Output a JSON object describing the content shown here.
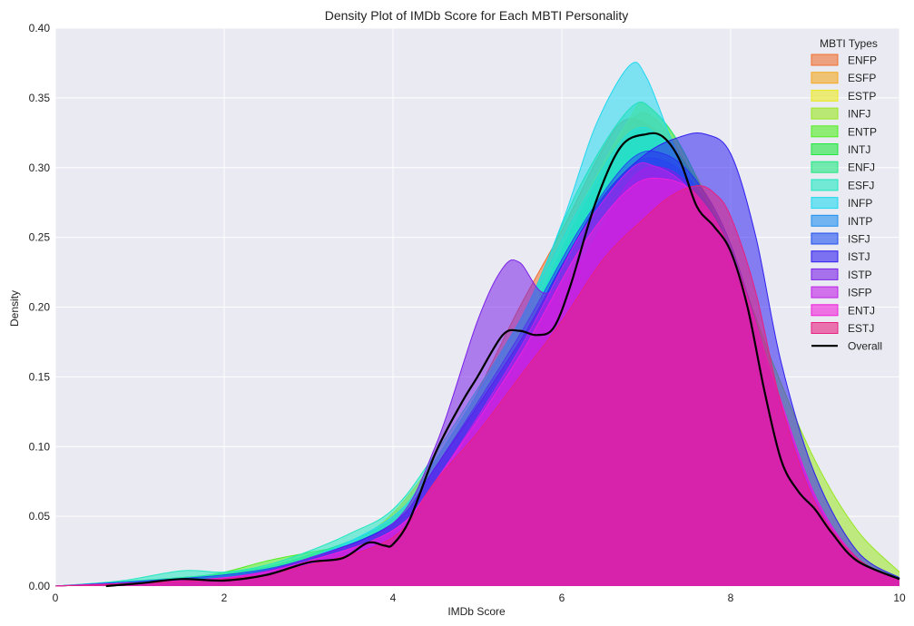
{
  "chart_data": {
    "type": "area",
    "title": "Density Plot of IMDb Score for Each MBTI Personality",
    "xlabel": "IMDb Score",
    "ylabel": "Density",
    "xlim": [
      0,
      10
    ],
    "ylim": [
      0,
      0.4
    ],
    "xticks": [
      "0",
      "2",
      "4",
      "6",
      "8",
      "10"
    ],
    "yticks": [
      "0.00",
      "0.05",
      "0.10",
      "0.15",
      "0.20",
      "0.25",
      "0.30",
      "0.35",
      "0.40"
    ],
    "grid": true,
    "legend": {
      "title": "MBTI Types",
      "position": "top-right"
    },
    "series": [
      {
        "name": "ENFP",
        "color": "#f07030",
        "x": [
          0,
          2,
          3.5,
          4.5,
          5.5,
          6.0,
          6.5,
          6.8,
          7.2,
          7.6,
          8.0,
          8.5,
          9.0,
          9.5,
          10
        ],
        "y": [
          0.0,
          0.006,
          0.028,
          0.085,
          0.2,
          0.255,
          0.315,
          0.335,
          0.322,
          0.29,
          0.24,
          0.13,
          0.05,
          0.015,
          0.005
        ]
      },
      {
        "name": "ESFP",
        "color": "#f4a820",
        "x": [
          0,
          2,
          3.5,
          4.5,
          5.5,
          6.2,
          6.8,
          7.1,
          7.5,
          8.0,
          8.5,
          9.0,
          9.5,
          10
        ],
        "y": [
          0.0,
          0.006,
          0.028,
          0.09,
          0.19,
          0.27,
          0.332,
          0.335,
          0.3,
          0.23,
          0.12,
          0.05,
          0.015,
          0.004
        ]
      },
      {
        "name": "ESTP",
        "color": "#eaea20",
        "x": [
          0,
          2,
          3.5,
          4.5,
          5.5,
          6.2,
          6.8,
          7.0,
          7.4,
          8.0,
          8.5,
          9.0,
          9.5,
          10
        ],
        "y": [
          0.0,
          0.007,
          0.03,
          0.088,
          0.185,
          0.27,
          0.335,
          0.345,
          0.315,
          0.24,
          0.13,
          0.06,
          0.018,
          0.005
        ]
      },
      {
        "name": "INFJ",
        "color": "#98e820",
        "x": [
          0,
          2,
          3.5,
          4.5,
          5.5,
          6.2,
          6.8,
          7.2,
          7.6,
          8.0,
          8.5,
          9.0,
          9.5,
          10
        ],
        "y": [
          0.0,
          0.006,
          0.026,
          0.07,
          0.16,
          0.24,
          0.29,
          0.298,
          0.285,
          0.24,
          0.16,
          0.09,
          0.04,
          0.01
        ]
      },
      {
        "name": "ENTP",
        "color": "#50ee20",
        "x": [
          0,
          1.5,
          2.0,
          2.5,
          3.0,
          3.5,
          4.0,
          4.5,
          5.5,
          6.2,
          6.8,
          7.3,
          7.8,
          8.3,
          9.0,
          9.5,
          10
        ],
        "y": [
          0.0,
          0.006,
          0.01,
          0.018,
          0.024,
          0.03,
          0.042,
          0.08,
          0.18,
          0.26,
          0.31,
          0.305,
          0.26,
          0.16,
          0.06,
          0.02,
          0.006
        ]
      },
      {
        "name": "INTJ",
        "color": "#20e840",
        "x": [
          0,
          2,
          3.0,
          4.0,
          4.5,
          5.5,
          6.2,
          6.8,
          7.2,
          7.6,
          8.0,
          8.5,
          9.0,
          9.5,
          10
        ],
        "y": [
          0.0,
          0.008,
          0.02,
          0.045,
          0.085,
          0.18,
          0.265,
          0.322,
          0.32,
          0.29,
          0.24,
          0.14,
          0.06,
          0.02,
          0.005
        ]
      },
      {
        "name": "ENFJ",
        "color": "#20e880",
        "x": [
          0,
          2,
          3.0,
          4.0,
          4.5,
          5.5,
          6.2,
          6.8,
          7.1,
          7.5,
          8.0,
          8.5,
          9.0,
          9.5,
          10
        ],
        "y": [
          0.0,
          0.009,
          0.022,
          0.048,
          0.09,
          0.19,
          0.285,
          0.342,
          0.34,
          0.305,
          0.23,
          0.13,
          0.055,
          0.018,
          0.005
        ]
      },
      {
        "name": "ESFJ",
        "color": "#20e8c0",
        "x": [
          0,
          0.8,
          1.5,
          2.0,
          2.5,
          3.0,
          3.5,
          4.0,
          4.5,
          5.5,
          6.2,
          6.8,
          7.2,
          7.6,
          8.0,
          8.5,
          9.0,
          9.5,
          10
        ],
        "y": [
          0.0,
          0.004,
          0.011,
          0.01,
          0.015,
          0.025,
          0.038,
          0.055,
          0.095,
          0.19,
          0.27,
          0.325,
          0.32,
          0.285,
          0.23,
          0.13,
          0.055,
          0.018,
          0.005
        ]
      },
      {
        "name": "INFP",
        "color": "#20d8f0",
        "x": [
          0,
          2,
          3.0,
          4.0,
          4.5,
          5.5,
          6.0,
          6.4,
          6.8,
          7.0,
          7.3,
          7.7,
          8.0,
          8.5,
          9.0,
          9.5,
          10
        ],
        "y": [
          0.0,
          0.006,
          0.02,
          0.05,
          0.09,
          0.19,
          0.26,
          0.33,
          0.373,
          0.365,
          0.32,
          0.265,
          0.22,
          0.13,
          0.055,
          0.018,
          0.005
        ]
      },
      {
        "name": "INTP",
        "color": "#2090f0",
        "x": [
          0,
          2,
          3.0,
          4.0,
          4.5,
          5.5,
          6.2,
          6.8,
          7.2,
          7.6,
          8.0,
          8.5,
          9.0,
          9.5,
          10
        ],
        "y": [
          0.0,
          0.008,
          0.02,
          0.045,
          0.085,
          0.175,
          0.25,
          0.3,
          0.305,
          0.285,
          0.24,
          0.15,
          0.065,
          0.02,
          0.005
        ]
      },
      {
        "name": "ISFJ",
        "color": "#2050f0",
        "x": [
          0,
          2,
          3.0,
          4.0,
          4.5,
          5.5,
          6.2,
          6.8,
          7.2,
          7.6,
          8.0,
          8.5,
          9.0,
          9.5,
          10
        ],
        "y": [
          0.0,
          0.008,
          0.02,
          0.045,
          0.085,
          0.18,
          0.255,
          0.305,
          0.31,
          0.29,
          0.245,
          0.15,
          0.065,
          0.02,
          0.005
        ]
      },
      {
        "name": "ISTJ",
        "color": "#3020f0",
        "x": [
          0,
          2,
          3.0,
          4.0,
          4.5,
          5.5,
          6.0,
          6.5,
          7.0,
          7.4,
          7.7,
          8.0,
          8.3,
          8.6,
          9.0,
          9.5,
          10
        ],
        "y": [
          0.0,
          0.006,
          0.02,
          0.045,
          0.085,
          0.175,
          0.23,
          0.28,
          0.31,
          0.322,
          0.324,
          0.31,
          0.25,
          0.16,
          0.08,
          0.025,
          0.006
        ]
      },
      {
        "name": "ISTP",
        "color": "#7a20e8",
        "x": [
          0,
          2,
          3.0,
          4.0,
          4.5,
          5.0,
          5.3,
          5.5,
          5.8,
          6.2,
          6.8,
          7.2,
          7.6,
          8.0,
          8.5,
          9.0,
          9.5,
          10
        ],
        "y": [
          0.0,
          0.006,
          0.02,
          0.045,
          0.1,
          0.19,
          0.228,
          0.232,
          0.21,
          0.23,
          0.29,
          0.3,
          0.28,
          0.23,
          0.14,
          0.06,
          0.02,
          0.005
        ]
      },
      {
        "name": "ISFP",
        "color": "#c020e8",
        "x": [
          0,
          2,
          3.0,
          4.0,
          4.5,
          5.5,
          6.2,
          6.8,
          7.1,
          7.5,
          8.0,
          8.5,
          9.0,
          9.5,
          10
        ],
        "y": [
          0.0,
          0.006,
          0.018,
          0.04,
          0.075,
          0.17,
          0.25,
          0.298,
          0.301,
          0.285,
          0.24,
          0.15,
          0.065,
          0.02,
          0.005
        ]
      },
      {
        "name": "ENTJ",
        "color": "#f020d8",
        "x": [
          0,
          2,
          3.0,
          4.0,
          4.5,
          5.5,
          6.2,
          6.8,
          7.2,
          7.6,
          8.0,
          8.5,
          9.0,
          9.5,
          10
        ],
        "y": [
          0.0,
          0.006,
          0.018,
          0.04,
          0.075,
          0.165,
          0.24,
          0.285,
          0.292,
          0.28,
          0.24,
          0.15,
          0.065,
          0.02,
          0.005
        ]
      },
      {
        "name": "ESTJ",
        "color": "#e82080",
        "x": [
          0,
          2,
          3.0,
          4.0,
          4.5,
          5.0,
          5.5,
          6.0,
          6.5,
          7.0,
          7.3,
          7.6,
          7.8,
          8.0,
          8.3,
          8.6,
          9.0,
          9.5,
          10
        ],
        "y": [
          0.0,
          0.005,
          0.015,
          0.035,
          0.075,
          0.11,
          0.15,
          0.19,
          0.235,
          0.265,
          0.28,
          0.287,
          0.282,
          0.265,
          0.21,
          0.13,
          0.06,
          0.02,
          0.005
        ]
      },
      {
        "name": "Overall",
        "color": "#000000",
        "x": [
          0.6,
          1.0,
          1.5,
          2.0,
          2.5,
          3.0,
          3.4,
          3.7,
          3.9,
          4.0,
          4.2,
          4.5,
          4.8,
          5.0,
          5.3,
          5.5,
          5.7,
          5.9,
          6.1,
          6.4,
          6.7,
          7.0,
          7.2,
          7.4,
          7.6,
          7.8,
          8.0,
          8.2,
          8.4,
          8.6,
          8.8,
          9.0,
          9.2,
          9.5,
          10
        ],
        "y": [
          0.0,
          0.002,
          0.005,
          0.004,
          0.008,
          0.017,
          0.02,
          0.031,
          0.029,
          0.03,
          0.048,
          0.095,
          0.13,
          0.15,
          0.18,
          0.183,
          0.18,
          0.185,
          0.215,
          0.275,
          0.315,
          0.324,
          0.322,
          0.305,
          0.272,
          0.258,
          0.24,
          0.2,
          0.14,
          0.09,
          0.068,
          0.055,
          0.038,
          0.018,
          0.005
        ]
      }
    ]
  }
}
